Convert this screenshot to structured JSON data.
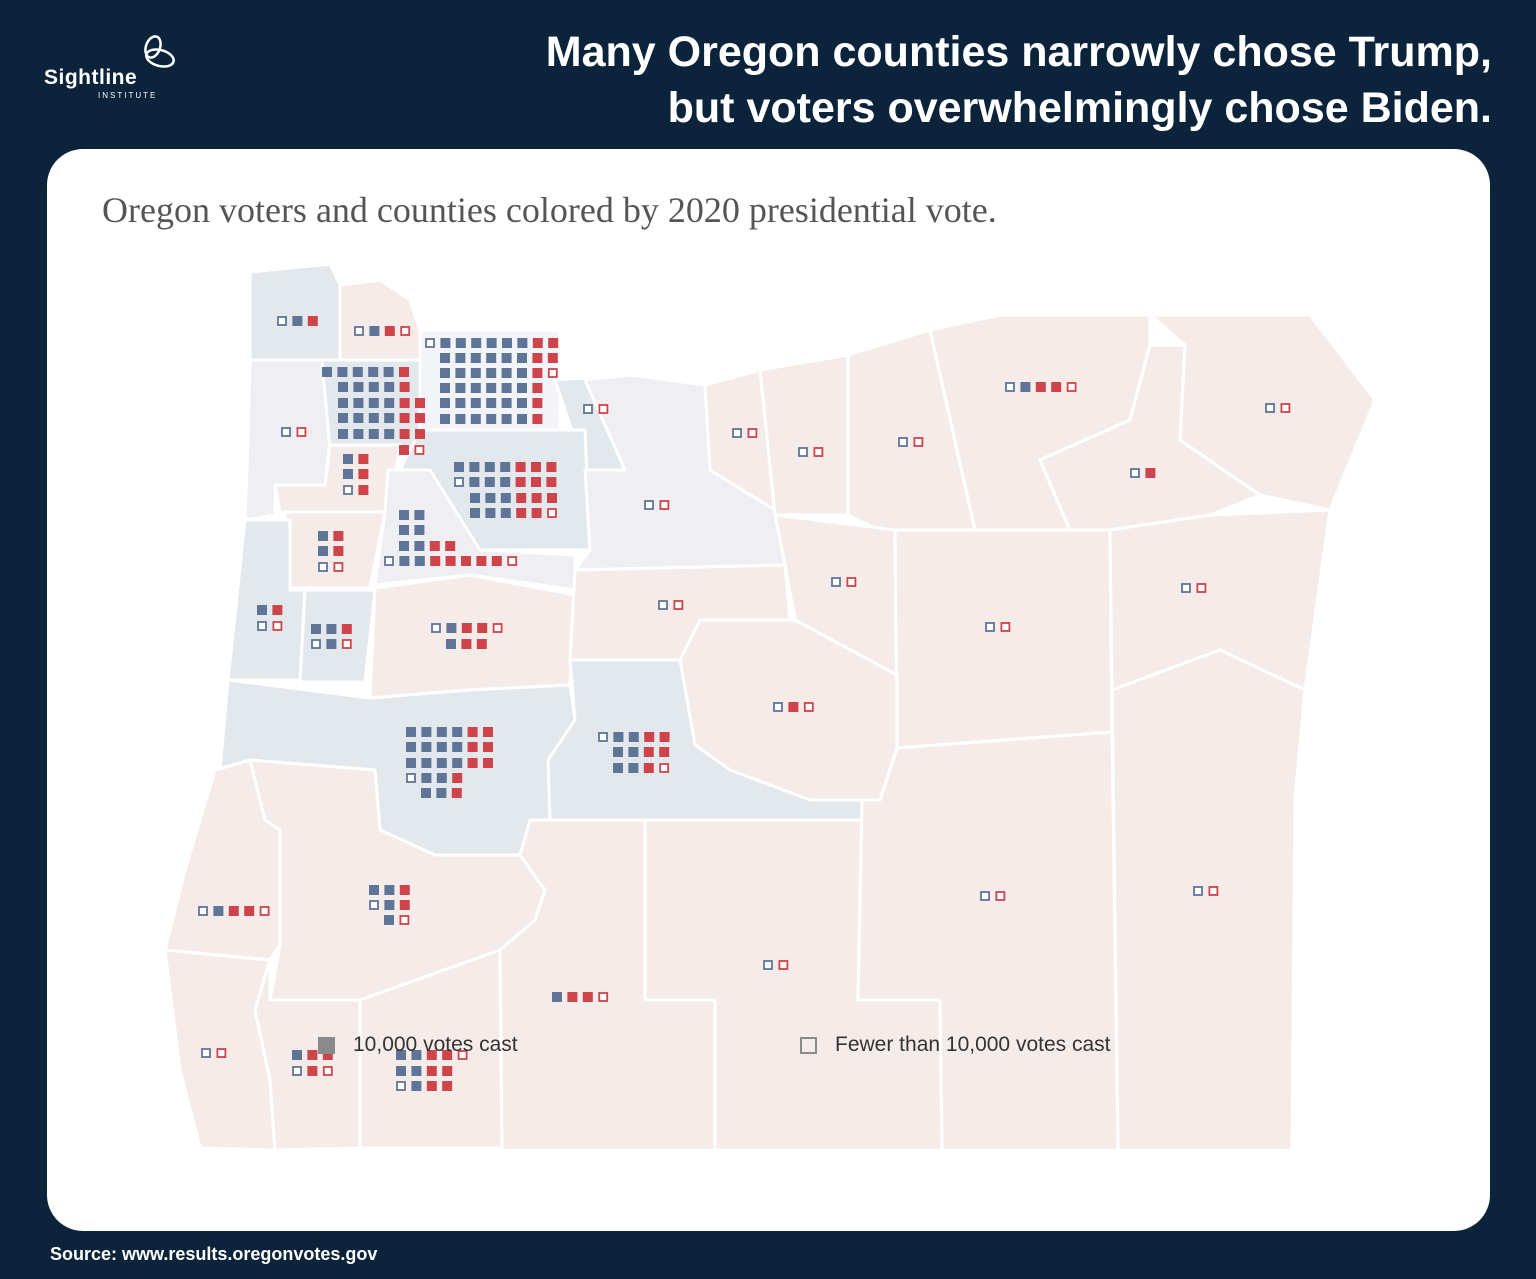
{
  "logo": {
    "name": "Sightline",
    "sub": "INSTITUTE"
  },
  "title": {
    "line1": "Many Oregon counties narrowly chose Trump,",
    "line2": "but voters overwhelmingly chose Biden."
  },
  "subtitle": "Oregon voters and counties colored by 2020 presidential vote.",
  "colors": {
    "background": "#0b243c",
    "dem": "#5f7597",
    "rep": "#cf444a",
    "county_dem": "#e3e8ed",
    "county_rep": "#f5ecea",
    "county_mixed": "#eeeef3"
  },
  "glyph_key": {
    "D": "Biden 10,000 votes",
    "d": "Biden fewer than 10,000",
    "R": "Trump 10,000 votes",
    "r": "Trump fewer than 10,000"
  },
  "counties_glyphs": [
    [
      "dDR"
    ],
    [
      "dDRr"
    ],
    [
      "dDDDDDDRR",
      "DDDDDDRR",
      "DDDDDDRr",
      "DDDDDDR",
      "DDDDDDR",
      "DDDDDDR"
    ],
    [
      "DDDDDR",
      "DDDDR",
      "DDDDRR",
      "DDDDRR",
      "DDDDRR",
      "Rr"
    ],
    [
      "dr"
    ],
    [
      "dr"
    ],
    [
      "DR",
      "DR",
      "dR"
    ],
    [
      "DDDDRRR",
      "dDDDRRR",
      "DDDRRR",
      "DDDRRr"
    ],
    [
      "DR",
      "DR",
      "dr"
    ],
    [
      "DD",
      "DD",
      "DDRR",
      "dDDRRRRRr"
    ],
    [
      "DR",
      "dr"
    ],
    [
      "DDR",
      "dDr"
    ],
    [
      "dDRRr",
      "DRR"
    ],
    [
      "dr"
    ],
    [
      "dr"
    ],
    [
      "dr"
    ],
    [
      "dr"
    ],
    [
      "dDRRr"
    ],
    [
      "dR"
    ],
    [
      "dr"
    ],
    [
      "dr"
    ],
    [
      "dr"
    ],
    [
      "dr"
    ],
    [
      "dr"
    ],
    [
      "dRr"
    ],
    [
      "DDDDRR",
      "DDDDRR",
      "DDDDRR",
      "dDDR",
      "DDR"
    ],
    [
      "dDDRR",
      "DDRR",
      "DDRr"
    ],
    [
      "dDRRr"
    ],
    [
      "DDR",
      "dDR",
      "Dr"
    ],
    [
      "dr"
    ],
    [
      "DRR",
      "dRr"
    ],
    [
      "DDRRr",
      "DDRR",
      "dDRR"
    ],
    [
      "DRRr"
    ],
    [
      "dr"
    ],
    [
      "dr"
    ],
    [
      "dr"
    ]
  ],
  "legend": {
    "full": "10,000 votes cast",
    "partial": "Fewer than 10,000 votes cast"
  },
  "source": "Source: www.results.oregonvotes.gov"
}
